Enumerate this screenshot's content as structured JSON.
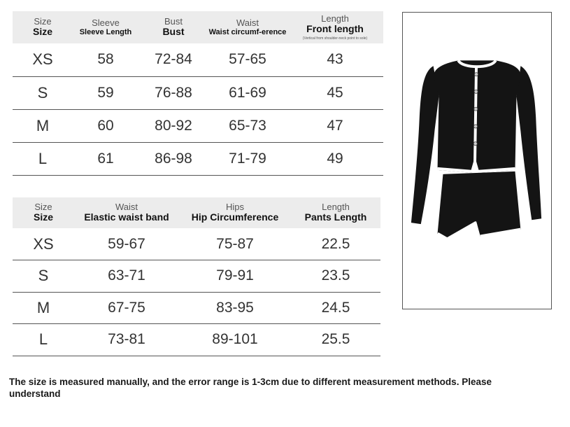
{
  "top_table": {
    "headers": [
      {
        "cn": "Size",
        "en": "Size",
        "note": ""
      },
      {
        "cn": "Sleeve",
        "en": "Sleeve Length",
        "note": ""
      },
      {
        "cn": "Bust",
        "en": "Bust",
        "note": ""
      },
      {
        "cn": "Waist",
        "en": "Waist circumf-erence",
        "note": ""
      },
      {
        "cn": "Length",
        "en": "Front length",
        "note": "(Vertical from shoulder-neck point to sole)"
      }
    ],
    "rows": [
      [
        "XS",
        "58",
        "72-84",
        "57-65",
        "43"
      ],
      [
        "S",
        "59",
        "76-88",
        "61-69",
        "45"
      ],
      [
        "M",
        "60",
        "80-92",
        "65-73",
        "47"
      ],
      [
        "L",
        "61",
        "86-98",
        "71-79",
        "49"
      ]
    ]
  },
  "bottom_table": {
    "headers": [
      {
        "cn": "Size",
        "en": "Size"
      },
      {
        "cn": "Waist",
        "en": "Elastic waist band"
      },
      {
        "cn": "Hips",
        "en": "Hip Circumference"
      },
      {
        "cn": "Length",
        "en": "Pants Length"
      }
    ],
    "rows": [
      [
        "XS",
        "59-67",
        "75-87",
        "22.5"
      ],
      [
        "S",
        "63-71",
        "79-91",
        "23.5"
      ],
      [
        "M",
        "67-75",
        "83-95",
        "24.5"
      ],
      [
        "L",
        "73-81",
        "89-101",
        "25.5"
      ]
    ]
  },
  "product_image": {
    "icon": "black-cardigan-and-shorts-set-illustration",
    "garment_color": "#141414",
    "trim_color": "#ffffff"
  },
  "footnote": "The size is measured manually, and the error range is 1-3cm due to different measurement methods. Please understand"
}
